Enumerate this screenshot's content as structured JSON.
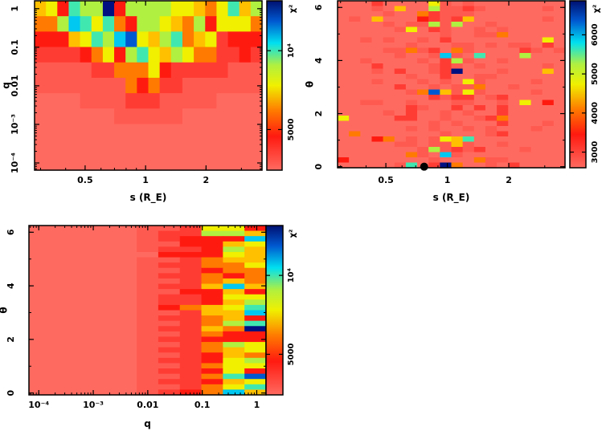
{
  "chart_data": [
    {
      "type": "heatmap",
      "xlabel": "s (R_E)",
      "ylabel": "q",
      "xscale": "log",
      "yscale": "log",
      "xlim": [
        0.28,
        3.8
      ],
      "ylim": [
        6.5e-05,
        1.6
      ],
      "xticks": [
        {
          "v": 0.5,
          "label": "0.5"
        },
        {
          "v": 1,
          "label": "1"
        },
        {
          "v": 2,
          "label": "2"
        }
      ],
      "yticks": [
        {
          "v": 1,
          "label": "1"
        },
        {
          "v": 0.1,
          "label": "0.1"
        },
        {
          "v": 0.01,
          "label": "0.01"
        },
        {
          "v": 0.001,
          "label": "10⁻³"
        },
        {
          "v": 0.0001,
          "label": "10⁻⁴"
        }
      ],
      "colorbar": {
        "label": "χ²",
        "scale": "log",
        "range": [
          3500,
          15500
        ],
        "ticks": [
          {
            "v": 5000,
            "label": "5000"
          },
          {
            "v": 10000,
            "label": "10⁴"
          }
        ]
      },
      "grid_levels_note": "hex level 0 (low chi2, light red) to b (high chi2, dark blue); rows top to bottom",
      "grid": [
        "563877b3777766546857",
        "44798684377654736664",
        "33356879a65784562333",
        "22223463786576442232",
        "11111224446322222111",
        "11111111434221111111",
        "00001111222111110000",
        "00000001111110000000",
        "00000000000000000000",
        "00000000000000000000",
        "00000000000000000000"
      ]
    },
    {
      "type": "heatmap",
      "xlabel": "s (R_E)",
      "ylabel": "θ",
      "xscale": "log",
      "yscale": "linear",
      "xlim": [
        0.29,
        3.77
      ],
      "ylim": [
        -0.04,
        6.25
      ],
      "xticks": [
        {
          "v": 0.5,
          "label": "0.5"
        },
        {
          "v": 1,
          "label": "1"
        },
        {
          "v": 2,
          "label": "2"
        }
      ],
      "yticks": [
        {
          "v": 0,
          "label": "0"
        },
        {
          "v": 2,
          "label": "2"
        },
        {
          "v": 4,
          "label": "4"
        },
        {
          "v": 6,
          "label": "6"
        }
      ],
      "colorbar": {
        "label": "χ²",
        "scale": "linear",
        "range": [
          2600,
          6870
        ],
        "ticks": [
          {
            "v": 3000,
            "label": "3000"
          },
          {
            "v": 4000,
            "label": "4000"
          },
          {
            "v": 5000,
            "label": "5000"
          },
          {
            "v": 6000,
            "label": "6000"
          }
        ]
      },
      "marker": {
        "s": 0.77,
        "theta": 0
      },
      "grid": [
        "00020000610100000000",
        "00010500711210000010",
        "00001004211100000000",
        "01050003212500000010",
        "00001011717001000000",
        "00000160210010100000",
        "00000000010011400000",
        "00101001020000000060",
        "00000010001101011020",
        "00001141204100002101",
        "00000100191080007000",
        "00100001027100100000",
        "00020000121010000010",
        "0001020012b000100050",
        "00000010020011000000",
        "00010001010610000100",
        "00000200101140010000",
        "00000014a51610000100",
        "00000000212201200000",
        "00110010001100106030",
        "00000021002020200000",
        "00001020010100200000",
        "60000220010012400000",
        "00000000101000200010",
        "00000010100101000100",
        "04000000010001200000",
        "00034010165800000000",
        "00000110115100100000",
        "00000001712120001000",
        "00000041091000000000",
        "30000000100041100000",
        "000001802b4001020000"
      ]
    },
    {
      "type": "heatmap",
      "xlabel": "q",
      "ylabel": "θ",
      "xscale": "log",
      "yscale": "linear",
      "xlim": [
        6.6e-05,
        1.48
      ],
      "ylim": [
        -0.07,
        6.25
      ],
      "xticks": [
        {
          "v": 0.0001,
          "label": "10⁻⁴"
        },
        {
          "v": 0.001,
          "label": "10⁻³"
        },
        {
          "v": 0.01,
          "label": "0.01"
        },
        {
          "v": 0.1,
          "label": "0.1"
        },
        {
          "v": 1,
          "label": "1"
        }
      ],
      "yticks": [
        {
          "v": 0,
          "label": "0"
        },
        {
          "v": 2,
          "label": "2"
        },
        {
          "v": 4,
          "label": "4"
        },
        {
          "v": 6,
          "label": "6"
        }
      ],
      "colorbar": {
        "label": "χ²",
        "scale": "log",
        "range": [
          3500,
          15500
        ],
        "ticks": [
          {
            "v": 5000,
            "label": "5000"
          },
          {
            "v": 10000,
            "label": "10⁴"
          }
        ]
      },
      "grid": [
        "00000112663",
        "00000122775",
        "00000123339",
        "00000113356",
        "00000122375",
        "00000033365",
        "00000112455",
        "00000122446",
        "00000112344",
        "00000122434",
        "00000112454",
        "00000122595",
        "00000113353",
        "00000122366",
        "00000122357",
        "00000134568",
        "00000112559",
        "00000122453",
        "00000112478",
        "0000012254b",
        "00000112433",
        "00000122333",
        "00000112476",
        "00000122456",
        "00000112354",
        "00000122367",
        "00000112466",
        "00000122363",
        "0000011248a",
        "00000122356",
        "00000112468",
        "00000123495"
      ]
    }
  ]
}
